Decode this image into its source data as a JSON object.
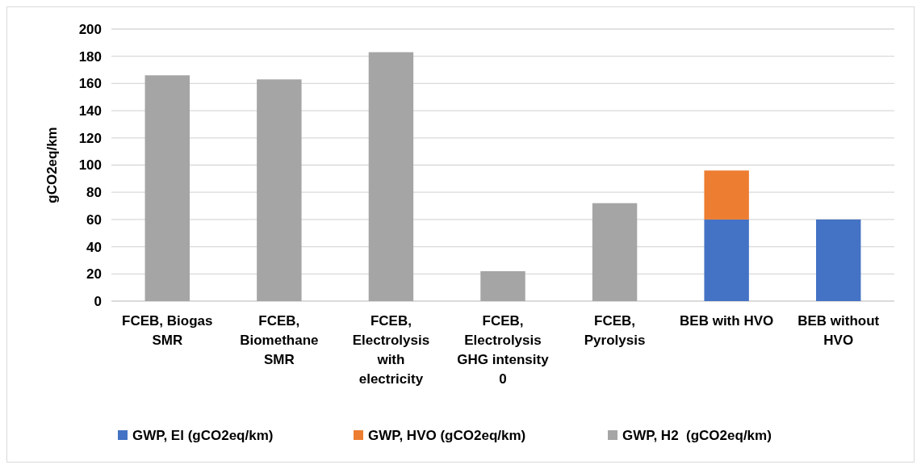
{
  "chart_data": {
    "type": "bar",
    "stacked": true,
    "ylabel": "gCO2eq/km",
    "categories": [
      "FCEB, Biogas SMR",
      "FCEB, Biomethane SMR",
      "FCEB, Electrolysis with electricity",
      "FCEB, Electrolysis GHG intensity 0",
      "FCEB, Pyrolysis",
      "BEB with HVO",
      "BEB without HVO"
    ],
    "series": [
      {
        "name": "GWP, El (gCO2eq/km)",
        "color": "#4472c4",
        "values": [
          null,
          null,
          null,
          null,
          null,
          60,
          60
        ]
      },
      {
        "name": "GWP, HVO (gCO2eq/km)",
        "color": "#ed7d31",
        "values": [
          null,
          null,
          null,
          null,
          null,
          36,
          null
        ]
      },
      {
        "name": "GWP, H2  (gCO2eq/km)",
        "color": "#a5a5a5",
        "values": [
          166,
          163,
          183,
          22,
          72,
          null,
          null
        ]
      }
    ],
    "ylim": [
      0,
      200
    ],
    "yticks": [
      0,
      20,
      40,
      60,
      80,
      100,
      120,
      140,
      160,
      180,
      200
    ],
    "grid": "y",
    "legend": "bottom"
  }
}
